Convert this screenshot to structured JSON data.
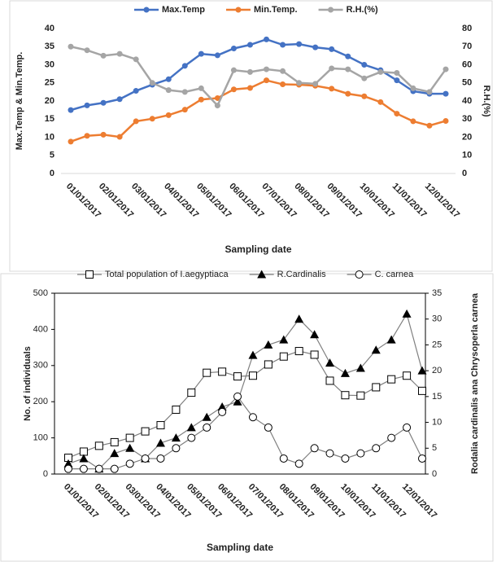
{
  "chart_data": [
    {
      "type": "line",
      "categories": [
        "01/01/2017",
        null,
        "02/01/2017",
        null,
        "03/01/2017",
        null,
        "04/01/2017",
        null,
        "05/01/2017",
        null,
        "06/01/2017",
        null,
        "07/01/2017",
        null,
        "08/01/2017",
        null,
        "09/01/2017",
        null,
        "10/01/2017",
        null,
        "11/01/2017",
        null,
        "12/01/2017",
        null
      ],
      "x_label": "Sampling date",
      "y_label": "Max.Temp & Min.Temp.",
      "y2_label": "R.H.(%)",
      "ylim": [
        0,
        40
      ],
      "yticks": [
        0,
        5,
        10,
        15,
        20,
        25,
        30,
        35,
        40
      ],
      "y2lim": [
        0,
        80
      ],
      "y2ticks": [
        0,
        10,
        20,
        30,
        40,
        50,
        60,
        70,
        80
      ],
      "grid": false,
      "legend": "top",
      "series": [
        {
          "name": "Max.Temp",
          "color": "#4472c4",
          "line_color": "#4472c4",
          "marker": "filled-circle",
          "values": [
            17.5,
            18.8,
            19.5,
            20.5,
            22.8,
            24.5,
            26,
            29.7,
            33,
            32.6,
            34.5,
            35.5,
            37,
            35.5,
            35.7,
            34.8,
            34.3,
            32.3,
            30,
            28.5,
            25.7,
            22.7,
            22,
            22
          ]
        },
        {
          "name": "Min.Temp.",
          "color": "#ed7d31",
          "line_color": "#ed7d31",
          "marker": "filled-circle",
          "values": [
            8.8,
            10.4,
            10.7,
            10.1,
            14.4,
            15.1,
            16.1,
            17.6,
            20.4,
            20.8,
            23.2,
            23.6,
            25.7,
            24.6,
            24.5,
            24.2,
            23.4,
            22,
            21.3,
            19.7,
            16.5,
            14.4,
            13.2,
            14.5
          ]
        },
        {
          "name": "R.H.(%)",
          "color": "#a5a5a5",
          "line_color": "#a5a5a5",
          "marker": "filled-circle",
          "axis": "y2",
          "values": [
            70,
            68,
            65,
            66,
            63,
            50,
            46,
            45,
            47,
            37.5,
            57,
            56,
            57.5,
            56.5,
            50,
            49.5,
            58,
            57.5,
            52.5,
            56,
            55.5,
            47,
            45,
            57.5
          ]
        }
      ]
    },
    {
      "type": "line",
      "categories": [
        "01/01/2017",
        null,
        "02/01/2017",
        null,
        "03/01/2017",
        null,
        "04/01/2017",
        null,
        "05/01/2017",
        null,
        "06/01/2017",
        null,
        "07/01/2017",
        null,
        "08/01/2017",
        null,
        "09/01/2017",
        null,
        "10/01/2017",
        null,
        "11/01/2017",
        null,
        "12/01/2017",
        null
      ],
      "x_label": "Sampling date",
      "y_label": "No. of individuals",
      "y2_label": "Rodalia cardinalis ana Chrysoperla carnea",
      "ylim": [
        0,
        500
      ],
      "yticks": [
        0,
        100,
        200,
        300,
        400,
        500
      ],
      "y2lim": [
        0,
        35
      ],
      "y2ticks": [
        0,
        5,
        10,
        15,
        20,
        25,
        30,
        35
      ],
      "grid": false,
      "legend": "top",
      "series": [
        {
          "name": "Total population of I.aegyptiaca",
          "color": "#000000",
          "line_color": "#7f7f7f",
          "marker": "open-square",
          "values": [
            45,
            62,
            78,
            88,
            100,
            118,
            135,
            178,
            225,
            280,
            283,
            270,
            272,
            303,
            325,
            340,
            330,
            258,
            218,
            217,
            240,
            262,
            272,
            230
          ]
        },
        {
          "name": "R.Cardinalis",
          "color": "#000000",
          "line_color": "#7f7f7f",
          "marker": "filled-triangle",
          "axis": "y2",
          "values": [
            2,
            3,
            1,
            4,
            5,
            3,
            6,
            7,
            9,
            11,
            13,
            14,
            23,
            25,
            26,
            30,
            27,
            21.5,
            19.5,
            20.5,
            24,
            26,
            31,
            20
          ]
        },
        {
          "name": "C. carnea",
          "color": "#000000",
          "line_color": "#7f7f7f",
          "marker": "open-circle",
          "axis": "y2",
          "values": [
            1,
            1,
            1,
            1,
            2,
            3,
            3,
            5,
            7,
            9,
            12,
            15,
            11,
            9,
            3,
            2,
            5,
            4,
            3,
            4,
            5,
            7,
            9,
            3
          ]
        }
      ]
    }
  ]
}
